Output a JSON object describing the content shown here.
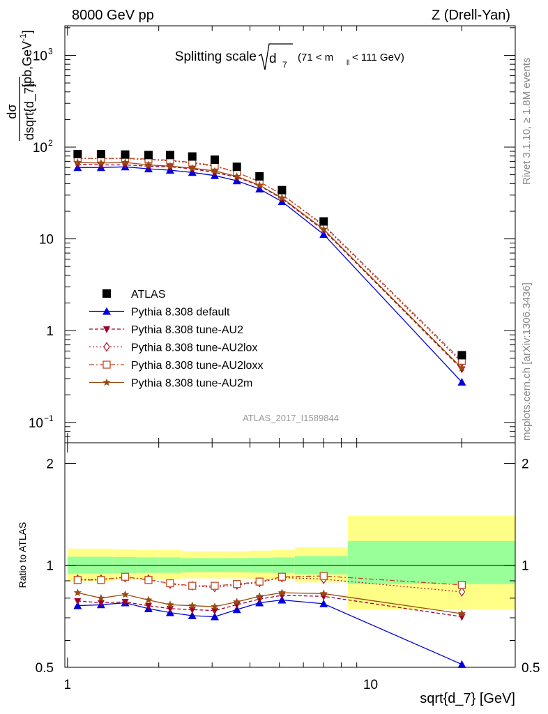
{
  "header": {
    "left": "8000 GeV pp",
    "right": "Z (Drell-Yan)"
  },
  "side": {
    "rivet": "Rivet 3.1.10, ≥ 1.8M events",
    "mcplots": "mcplots.cern.ch [arXiv:1306.3436]"
  },
  "main": {
    "title_prefix": "Splitting scale",
    "title_var": "d",
    "title_var_sub": "7",
    "title_cut_a": "(71 < m",
    "title_cut_sub": "ll",
    "title_cut_b": " < 111 GeV)",
    "watermark": "ATLAS_2017_I1589844",
    "ylabel_num": "dσ",
    "ylabel_den": "dsqrt{d_7}",
    "ylabel_unit": "[pb,GeV",
    "ylabel_unit_sup": "-1",
    "ylabel_unit_end": "]",
    "yticks": [
      {
        "value": 0.1,
        "label": "10",
        "sup": "−1"
      },
      {
        "value": 1,
        "label": "1",
        "sup": ""
      },
      {
        "value": 10,
        "label": "10",
        "sup": ""
      },
      {
        "value": 100,
        "label": "10",
        "sup": "2"
      },
      {
        "value": 1000,
        "label": "10",
        "sup": "3"
      }
    ]
  },
  "ratio": {
    "ylabel": "Ratio to ATLAS",
    "yticks": [
      {
        "value": 0.5,
        "label": "0.5"
      },
      {
        "value": 1,
        "label": "1"
      },
      {
        "value": 2,
        "label": "2"
      }
    ]
  },
  "xaxis": {
    "label": "sqrt{d_7} [GeV]",
    "ticks": [
      {
        "value": 1,
        "label": "1"
      },
      {
        "value": 10,
        "label": "10"
      }
    ]
  },
  "legend": [
    {
      "key": "atlas",
      "label": "ATLAS"
    },
    {
      "key": "default",
      "label": "Pythia 8.308 default"
    },
    {
      "key": "au2",
      "label": "Pythia 8.308 tune-AU2"
    },
    {
      "key": "au2lox",
      "label": "Pythia 8.308 tune-AU2lox"
    },
    {
      "key": "au2loxx",
      "label": "Pythia 8.308 tune-AU2loxx"
    },
    {
      "key": "au2m",
      "label": "Pythia 8.308 tune-AU2m"
    }
  ],
  "colors": {
    "atlas": "#000000",
    "default": "#0000dd",
    "au2": "#a0002a",
    "au2lox": "#b01a30",
    "au2loxx": "#c04a20",
    "au2m": "#9a4a10",
    "band_inner": "#99ff99",
    "band_outer": "#ffff88"
  },
  "chart_data": {
    "type": "line",
    "x_scale": "log",
    "y_scale": "log",
    "xlim": [
      0.98,
      30
    ],
    "ylim": [
      0.06,
      2100
    ],
    "ratio_ylim": [
      0.5,
      2.3
    ],
    "ratio_y_scale": "log",
    "x": [
      1.08,
      1.29,
      1.55,
      1.85,
      2.18,
      2.58,
      3.06,
      3.62,
      4.3,
      5.1,
      7.0,
      20.0
    ],
    "bin_edges": [
      1.0,
      1.18,
      1.41,
      1.69,
      2.0,
      2.37,
      2.82,
      3.35,
      3.98,
      4.73,
      5.62,
      8.41,
      31.6
    ],
    "atlas": [
      84,
      84,
      83,
      82,
      82,
      79,
      73,
      61,
      48,
      34,
      15.5,
      0.54
    ],
    "series": [
      {
        "key": "default",
        "name": "Pythia 8.308 default",
        "marker": "triangle-up",
        "dash": "solid",
        "values": [
          60,
          60,
          61,
          58,
          56,
          53,
          49,
          43,
          35,
          25.5,
          11.2,
          0.275
        ]
      },
      {
        "key": "au2",
        "name": "Pythia 8.308 tune-AU2",
        "marker": "triangle-down",
        "dash": "dashed",
        "values": [
          65,
          64,
          64,
          62,
          61,
          58,
          53,
          47,
          38,
          27.5,
          12.4,
          0.38
        ]
      },
      {
        "key": "au2lox",
        "name": "Pythia 8.308 tune-AU2lox",
        "marker": "diamond-open",
        "dash": "dotted",
        "values": [
          75,
          75,
          75,
          73,
          71,
          67,
          62,
          53,
          42,
          30.5,
          13.9,
          0.45
        ]
      },
      {
        "key": "au2loxx",
        "name": "Pythia 8.308 tune-AU2loxx",
        "marker": "square-open",
        "dash": "dashdot",
        "values": [
          76,
          75,
          76,
          74,
          72,
          68,
          63,
          53,
          42,
          30.5,
          14.2,
          0.47
        ]
      },
      {
        "key": "au2m",
        "name": "Pythia 8.308 tune-AU2m",
        "marker": "star",
        "dash": "solid",
        "values": [
          68,
          67,
          68,
          64,
          62,
          59,
          55,
          48,
          38.5,
          28,
          12.7,
          0.39
        ]
      }
    ],
    "ratio": {
      "default": [
        0.76,
        0.765,
        0.775,
        0.745,
        0.725,
        0.71,
        0.705,
        0.74,
        0.775,
        0.79,
        0.77,
        0.51
      ],
      "au2": [
        0.785,
        0.775,
        0.78,
        0.76,
        0.745,
        0.74,
        0.735,
        0.765,
        0.795,
        0.815,
        0.81,
        0.705
      ],
      "au2lox": [
        0.91,
        0.91,
        0.92,
        0.91,
        0.88,
        0.87,
        0.86,
        0.875,
        0.89,
        0.92,
        0.91,
        0.835
      ],
      "au2loxx": [
        0.905,
        0.905,
        0.925,
        0.905,
        0.885,
        0.87,
        0.87,
        0.88,
        0.895,
        0.925,
        0.93,
        0.875
      ],
      "au2m": [
        0.83,
        0.8,
        0.82,
        0.79,
        0.765,
        0.76,
        0.755,
        0.78,
        0.81,
        0.83,
        0.825,
        0.72
      ]
    },
    "band_inner": [
      [
        0.945,
        1.06
      ],
      [
        0.945,
        1.06
      ],
      [
        0.948,
        1.058
      ],
      [
        0.95,
        1.055
      ],
      [
        0.95,
        1.055
      ],
      [
        0.955,
        1.05
      ],
      [
        0.955,
        1.05
      ],
      [
        0.955,
        1.05
      ],
      [
        0.952,
        1.052
      ],
      [
        0.95,
        1.055
      ],
      [
        0.94,
        1.065
      ],
      [
        0.88,
        1.18
      ]
    ],
    "band_outer": [
      [
        0.9,
        1.12
      ],
      [
        0.9,
        1.12
      ],
      [
        0.905,
        1.115
      ],
      [
        0.91,
        1.11
      ],
      [
        0.91,
        1.11
      ],
      [
        0.915,
        1.1
      ],
      [
        0.915,
        1.1
      ],
      [
        0.915,
        1.1
      ],
      [
        0.912,
        1.105
      ],
      [
        0.905,
        1.11
      ],
      [
        0.89,
        1.13
      ],
      [
        0.74,
        1.4
      ]
    ]
  }
}
